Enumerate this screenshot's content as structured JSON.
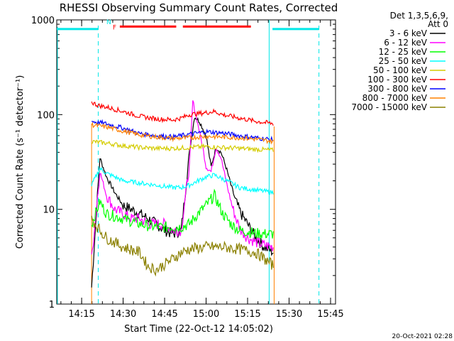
{
  "chart_data": {
    "type": "line",
    "title": "RHESSI Observing Summary Count Rates, Corrected",
    "xlabel": "Start Time (22-Oct-12 14:05:02)",
    "ylabel": "Corrected Count Rate (s⁻¹ detector⁻¹)",
    "yscale": "log",
    "ylim": [
      1,
      1000
    ],
    "xlim": [
      14.1,
      15.78
    ],
    "y_ticks": [
      1,
      10,
      100,
      1000
    ],
    "y_tick_labels": [
      "1",
      "10",
      "100",
      "1000"
    ],
    "x_ticks": [
      14.25,
      14.5,
      14.75,
      15.0,
      15.25,
      15.5,
      15.75
    ],
    "x_tick_labels": [
      "14:15",
      "14:30",
      "14:45",
      "15:00",
      "15:15",
      "15:30",
      "15:45"
    ],
    "legend_header": [
      "Det 1,3,5,6,9,",
      "Att 0"
    ],
    "timestamp": "20-Oct-2021 02:28",
    "flags": [
      {
        "label": "F",
        "color": "#ff0000",
        "x": [
          14.48,
          14.82
        ],
        "y": 850
      },
      {
        "label": "",
        "color": "#ff0000",
        "x": [
          14.86,
          15.27
        ],
        "y": 850
      },
      {
        "label": "N",
        "color": "#00e8e8",
        "x": [
          14.1,
          14.35
        ],
        "y": 800
      },
      {
        "label": "",
        "color": "#00e8e8",
        "x": [
          15.4,
          15.68
        ],
        "y": 800
      }
    ],
    "markers": {
      "night_start": 14.35,
      "night_end": 15.68,
      "data_start": 14.31,
      "data_end": 15.41,
      "saa_line": 15.38
    },
    "series": [
      {
        "name": "3 - 6 keV",
        "color": "#000000",
        "x": [
          14.31,
          14.36,
          14.4,
          14.45,
          14.5,
          14.55,
          14.6,
          14.65,
          14.7,
          14.75,
          14.8,
          14.85,
          14.9,
          14.93,
          14.96,
          15.0,
          15.03,
          15.06,
          15.09,
          15.12,
          15.15,
          15.18,
          15.21,
          15.25,
          15.3,
          15.35,
          15.41
        ],
        "y": [
          1.5,
          35,
          22,
          15,
          11,
          10,
          9,
          8,
          7,
          6,
          5.5,
          6,
          40,
          95,
          85,
          60,
          28,
          45,
          40,
          28,
          18,
          12,
          9,
          7,
          5,
          4,
          3.5
        ]
      },
      {
        "name": "6 - 12 keV",
        "color": "#ff00ff",
        "x": [
          14.31,
          14.36,
          14.4,
          14.45,
          14.5,
          14.55,
          14.6,
          14.65,
          14.7,
          14.75,
          14.8,
          14.85,
          14.9,
          14.92,
          14.95,
          14.98,
          15.0,
          15.03,
          15.06,
          15.09,
          15.12,
          15.15,
          15.18,
          15.21,
          15.25,
          15.3,
          15.35,
          15.41
        ],
        "y": [
          3,
          25,
          14,
          10,
          9,
          8,
          8,
          7,
          7,
          7,
          6,
          6,
          30,
          140,
          80,
          45,
          28,
          25,
          45,
          35,
          20,
          12,
          8,
          6,
          5,
          4.5,
          4.2,
          4
        ]
      },
      {
        "name": "12 - 25 keV",
        "color": "#00ff00",
        "x": [
          14.31,
          14.36,
          14.4,
          14.5,
          14.6,
          14.7,
          14.8,
          14.85,
          14.9,
          14.95,
          15.0,
          15.05,
          15.1,
          15.15,
          15.2,
          15.25,
          15.3,
          15.35,
          15.41
        ],
        "y": [
          7,
          12,
          9,
          8,
          7,
          6.5,
          6.5,
          6.5,
          7,
          9,
          11,
          14,
          9,
          7,
          6,
          5.8,
          5.6,
          5.5,
          5.5
        ]
      },
      {
        "name": "25 - 50 keV",
        "color": "#00ffff",
        "x": [
          14.31,
          14.36,
          14.4,
          14.45,
          14.5,
          14.6,
          14.7,
          14.8,
          14.85,
          14.9,
          14.95,
          15.0,
          15.05,
          15.1,
          15.15,
          15.2,
          15.3,
          15.41
        ],
        "y": [
          18,
          27,
          24,
          22,
          20,
          19,
          18,
          17,
          17,
          18,
          20,
          22,
          23,
          21,
          19,
          17,
          16,
          15
        ]
      },
      {
        "name": "50 - 100 keV",
        "color": "#d4cc00",
        "x": [
          14.31,
          14.4,
          14.5,
          14.6,
          14.7,
          14.8,
          14.9,
          15.0,
          15.1,
          15.2,
          15.3,
          15.41
        ],
        "y": [
          52,
          50,
          47,
          45,
          44,
          44,
          45,
          46,
          45,
          44,
          43,
          42
        ]
      },
      {
        "name": "100 - 300 keV",
        "color": "#ff0000",
        "x": [
          14.31,
          14.35,
          14.4,
          14.5,
          14.6,
          14.7,
          14.8,
          14.85,
          14.9,
          15.0,
          15.05,
          15.1,
          15.2,
          15.3,
          15.41
        ],
        "y": [
          135,
          125,
          120,
          108,
          96,
          90,
          88,
          92,
          100,
          105,
          108,
          100,
          92,
          85,
          80
        ]
      },
      {
        "name": "300 - 800 keV",
        "color": "#0000ff",
        "x": [
          14.31,
          14.4,
          14.5,
          14.6,
          14.7,
          14.8,
          14.9,
          15.0,
          15.1,
          15.2,
          15.3,
          15.41
        ],
        "y": [
          85,
          80,
          72,
          63,
          60,
          58,
          62,
          66,
          64,
          60,
          57,
          54
        ]
      },
      {
        "name": "800 - 7000 keV",
        "color": "#ff8000",
        "x": [
          14.31,
          14.4,
          14.5,
          14.6,
          14.7,
          14.8,
          14.9,
          15.0,
          15.1,
          15.2,
          15.3,
          15.41
        ],
        "y": [
          78,
          74,
          67,
          61,
          58,
          56,
          57,
          59,
          58,
          57,
          55,
          52
        ]
      },
      {
        "name": "7000 - 15000 keV",
        "color": "#8b8000",
        "x": [
          14.31,
          14.36,
          14.4,
          14.5,
          14.6,
          14.65,
          14.7,
          14.8,
          14.85,
          14.9,
          15.0,
          15.1,
          15.2,
          15.3,
          15.35,
          15.41
        ],
        "y": [
          8,
          6,
          5,
          4,
          3.5,
          2.5,
          2.3,
          3,
          3.5,
          3.8,
          4,
          4,
          3.8,
          3.5,
          3,
          2.5
        ]
      }
    ]
  }
}
